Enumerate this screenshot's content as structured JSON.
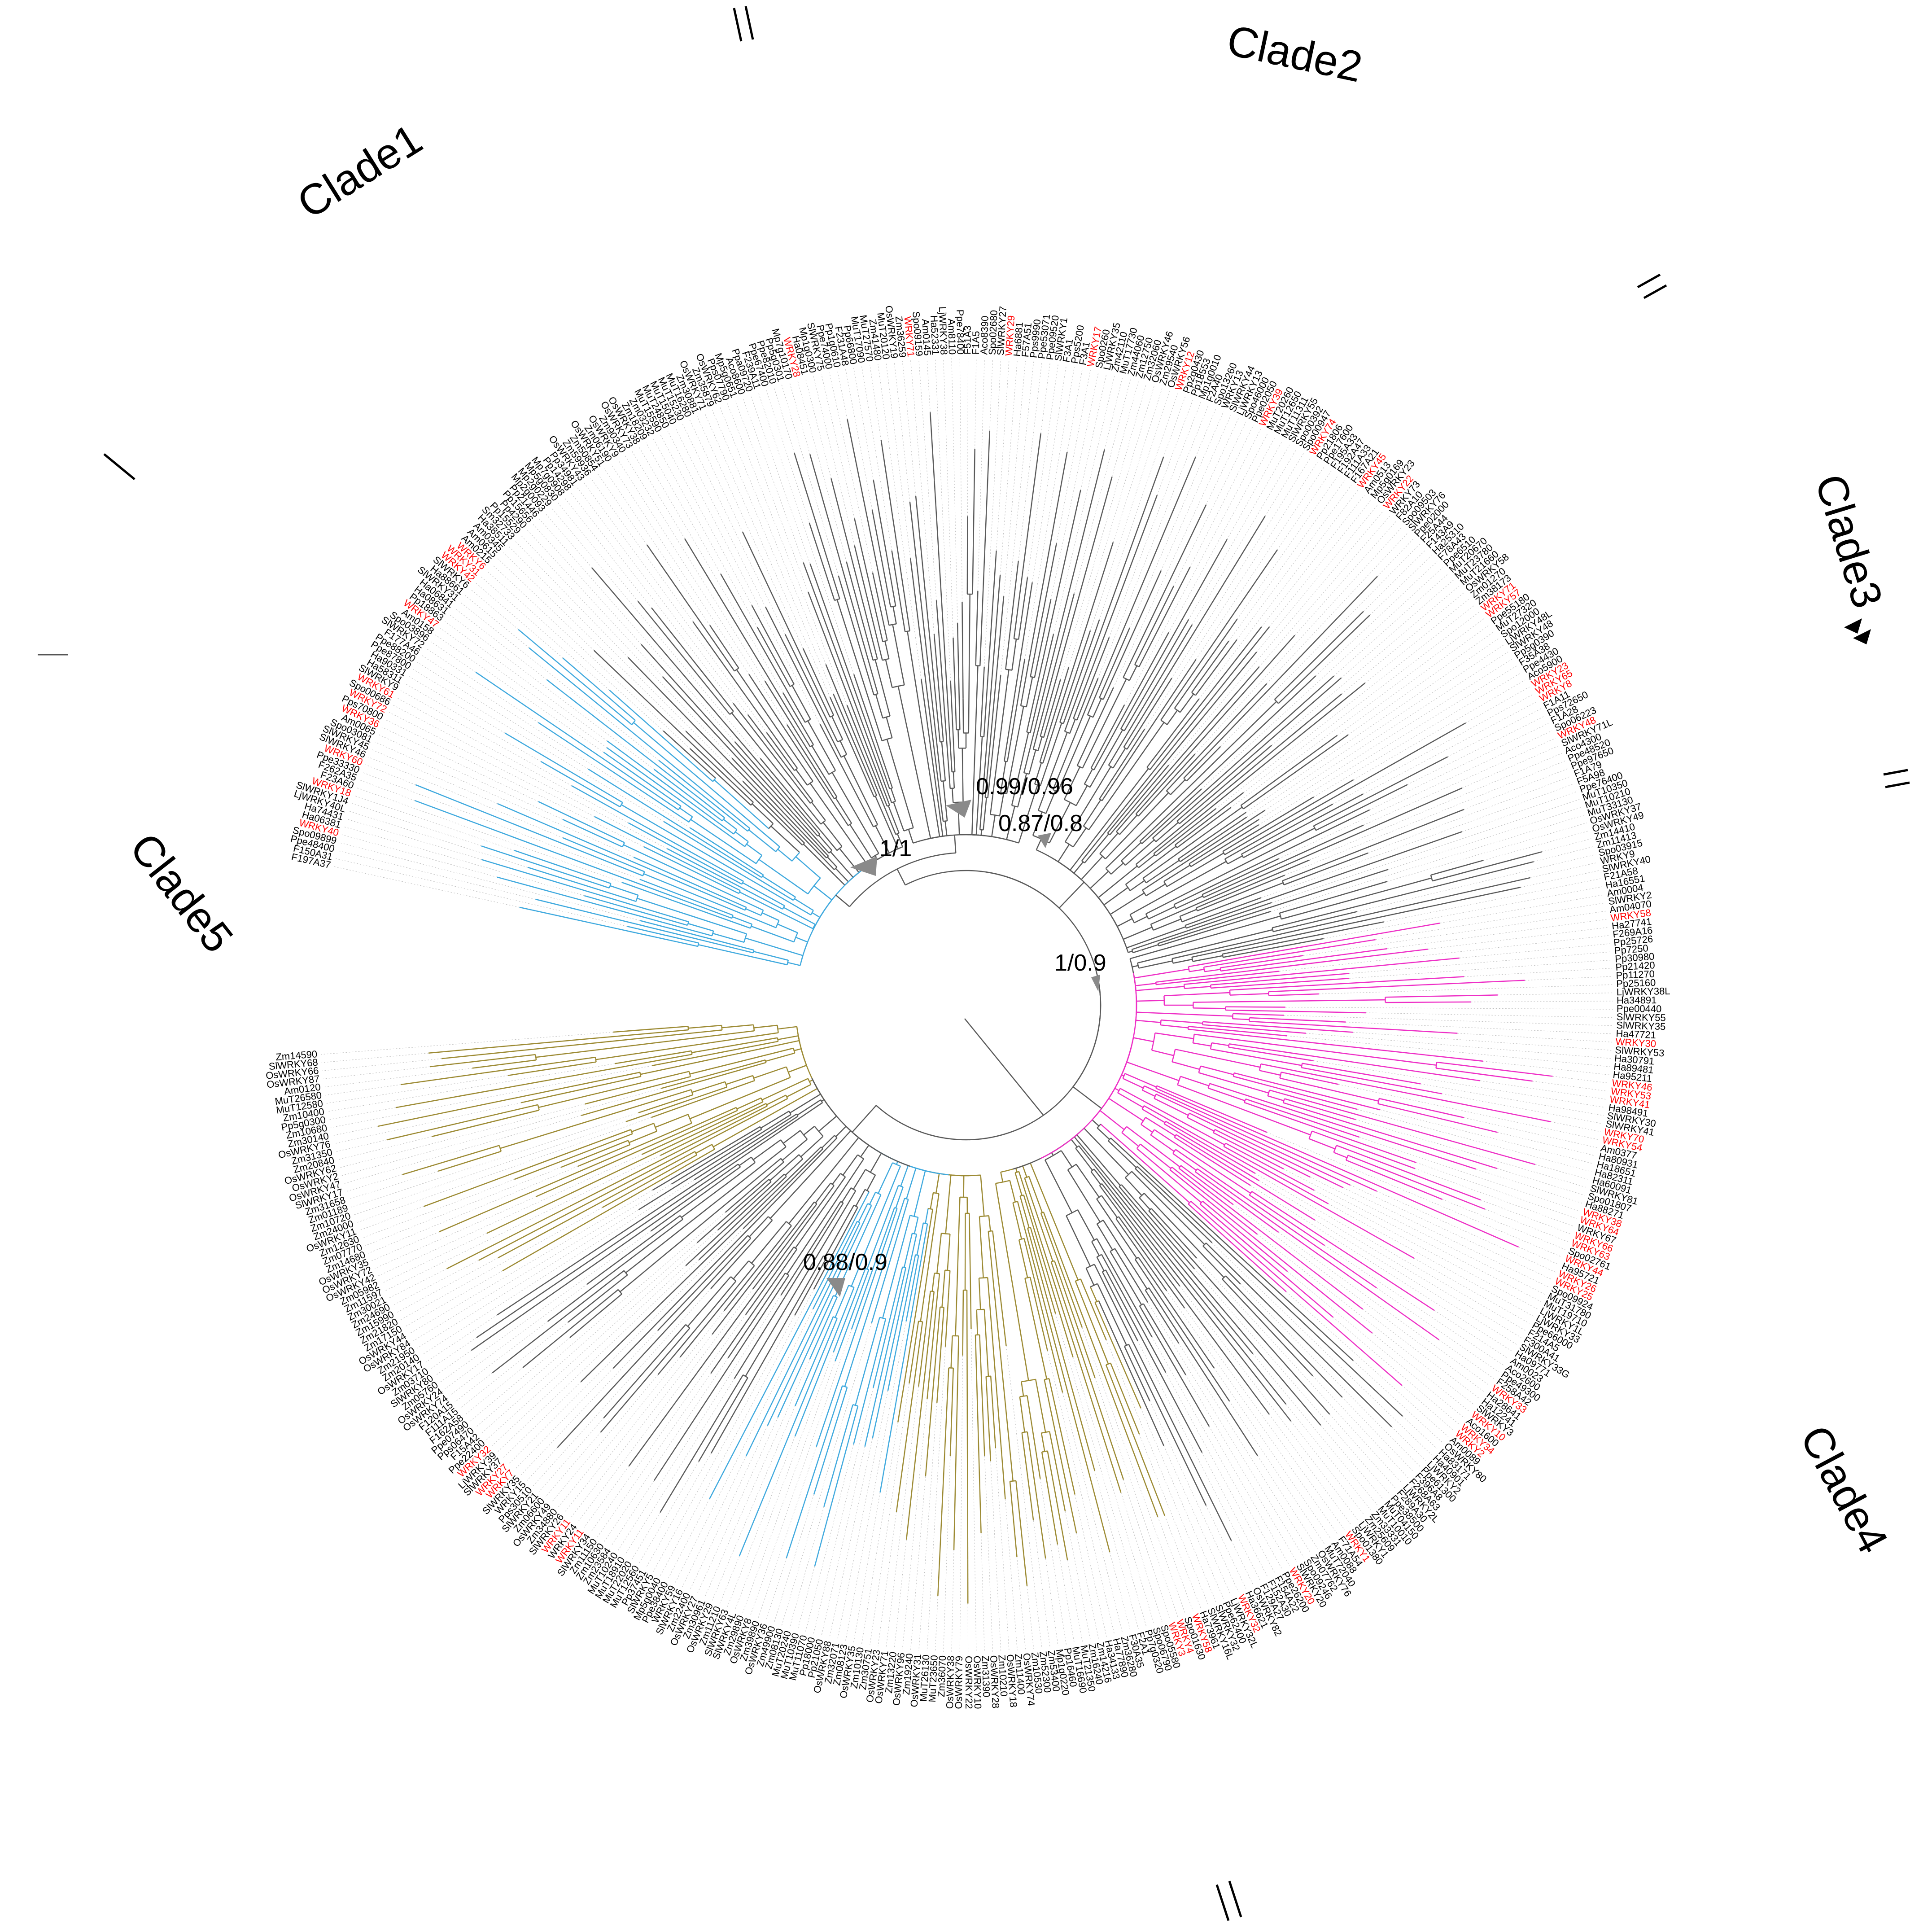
{
  "colors": {
    "branch_default": "#5a5a5a",
    "branch_blue": "#3fa9de",
    "branch_olive": "#9c8a33",
    "branch_magenta": "#ee2fc6",
    "leaf_black": "#000000",
    "leaf_red": "#ff0000",
    "dotted_guide": "#bdbdbd",
    "node_marker": "#8a8a8a"
  },
  "clades": [
    {
      "label": "Clade1"
    },
    {
      "label": "Clade2"
    },
    {
      "label": "Clade3"
    },
    {
      "label": "Clade4"
    },
    {
      "label": "Clade5"
    }
  ],
  "support_values": [
    {
      "label": "1/1"
    },
    {
      "label": "0.99/0.96"
    },
    {
      "label": "0.87/0.8"
    },
    {
      "label": "1/0.9"
    },
    {
      "label": "0.88/0.9"
    }
  ],
  "leaves_red_sample": [
    "WRKY49",
    "WRKY28",
    "WRKY32",
    "WRKY45",
    "WRKY69",
    "WRKY44",
    "WRKY26",
    "WRKY25",
    "WRKY35",
    "WRKY54",
    "WRKY70",
    "WRKY55",
    "WRKY53",
    "WRKY46",
    "WRKY41",
    "WRKY30",
    "WRKY38",
    "WRKY62",
    "WRKY64",
    "WRKY66",
    "WRKY63",
    "WRKY33",
    "WRKY10",
    "WRKY34",
    "WRKY2",
    "WRKY1",
    "WRKY20",
    "WRKY32",
    "WRKY58",
    "WRKY4",
    "WRKY3",
    "WRKY18",
    "WRKY40",
    "WRKY60",
    "WRKY36",
    "WRKY72",
    "WRKY61",
    "WRKY47",
    "WRKY42",
    "WRKY31",
    "WRKY6",
    "WRKY11",
    "WRKY17",
    "WRKY7",
    "WRKY12",
    "WRKY57",
    "WRKY8",
    "WRKY71",
    "WRKY39",
    "WRKY29",
    "WRKY22",
    "WRKY27",
    "WRKY48",
    "WRKY23",
    "WRKY65",
    "WRKY74"
  ],
  "leaves": [
    "F197A37",
    "F150A31",
    "Ppe48400",
    "Spo09899",
    "WRKY40",
    "Ha06381",
    "Ha74431",
    "LjWRKY40L",
    "SlWRKY1J4",
    "WRKY18",
    "F23A60",
    "F262A35",
    "Ppe33330",
    "WRKY60",
    "SlWRKY46",
    "SlWRKY45",
    "Spo03081",
    "Am0065",
    "WRKY36",
    "Pps70800",
    "WRKY72",
    "Spo00686",
    "WRKY61",
    "SlWRKY9",
    "Ha58311",
    "Ha90331",
    "Ppe87800",
    "Ppe88200",
    "F177A46",
    "SlWRKY72",
    "Spo03896",
    "Am0158",
    "WRKY47",
    "Pp18863",
    "Ha08631",
    "Ha06841",
    "SlWRKY31",
    "Ha88661",
    "SlWRKY6",
    "WRKY42",
    "WRKY31",
    "WRKY6",
    "Am0215",
    "Am0615",
    "Am0345",
    "Ha38511",
    "Sm32733",
    "Pp15529",
    "Pp4290",
    "Pp15656",
    "Pp21446",
    "Mp2g0093",
    "Mp2g0229",
    "Mp5g0830",
    "Mp7g0908",
    "Pp14298",
    "Pp34981",
    "OsWRKY43",
    "Zm59936",
    "Zm50854",
    "OsWRKY51",
    "Zm06190",
    "OsWRKY9",
    "Zm90340",
    "OsWRKY73",
    "OsWRKY38",
    "Zm18209",
    "Zm03232",
    "MuT15590",
    "MuT24850",
    "MuT15040",
    "MuT15230",
    "MuT16280",
    "Zm30881",
    "OsWRKY71",
    "Zm35879",
    "OsWRKY62",
    "Pps07790",
    "Mp5g0651",
    "Aco8600",
    "Ppa09720",
    "F239A11",
    "Ppe67400",
    "Ppe82010",
    "Pp5g0301",
    "Mp7g10170",
    "WRKY28",
    "Ha08451",
    "Mp1g0300",
    "SlWRKY75",
    "Ppe74000",
    "Pp1g0610",
    "F231A48",
    "Pp66800",
    "MuT17090",
    "MuT27570",
    "Zm41480",
    "MuT20120",
    "OsWRKY19",
    "Zm36259",
    "WRKY71",
    "Spo09159",
    "Am0145",
    "Ha52331",
    "LjWRKY38",
    "Am8110",
    "Ppe78400",
    "F51A3",
    "F1A5",
    "Aco8390",
    "Spo02680",
    "SlWRKY27",
    "WRKY29",
    "Ha6881",
    "F57A51",
    "Pps9990",
    "Ppe53071",
    "Ppe09520",
    "SlWRKY1",
    "F3A1",
    "Pps5200",
    "F3A1",
    "WRKY17",
    "Spo0260",
    "LjWRKY35",
    "Zm42110",
    "MuT17730",
    "Zm44060",
    "Zm12750",
    "Zm32060",
    "OsWRKY46",
    "Zm29540",
    "OsWRKY56",
    "WRKY12",
    "Pp2g0430",
    "Pp18553",
    "Mp1g0010",
    "F2A40",
    "Spo13260",
    "WRKY13",
    "SlWRKY44",
    "LjWRKY13",
    "Spo46000",
    "Ppe02050",
    "WRKY39",
    "MuT20260",
    "MuT12650",
    "MuT11311",
    "SlWRKY55",
    "Spo00392",
    "Spo00947",
    "WRKY74",
    "Pp21806",
    "Ppe17600",
    "F195A33",
    "F192A47",
    "F111A33",
    "F167A21",
    "WRKY45",
    "Am0513",
    "Mp5g0169",
    "OsWRKY23",
    "WRKY22",
    "WRKY73",
    "F82A10",
    "Spo09503",
    "SlWRKY76",
    "Ppe02000",
    "F25A44",
    "F143A9",
    "Ha25310",
    "F78A43",
    "Ppe6510",
    "MuT20670",
    "MuT23780",
    "MuT21660",
    "OsWRKY58",
    "Zm01270",
    "Zm38173",
    "WRKY71",
    "WRKY57",
    "Ppe55180",
    "MuT27320",
    "Spo12000",
    "LjWRKY48L",
    "SlWRKY48",
    "Pp5g0390",
    "F35A38",
    "Ppe4430",
    "Aco5900",
    "WRKY23",
    "WRKY65",
    "WRKY8",
    "F1A11",
    "Pps72650",
    "F1A28",
    "Spo06223",
    "WRKY48",
    "SlWRKY71L",
    "Aco4300",
    "Ppe48520",
    "Ppe97650",
    "F1A79",
    "F5A98",
    "Ppe76400",
    "MuT10350",
    "MuT10210",
    "MuT33130",
    "OsWRKY37",
    "OsWRKY49",
    "Zm14410",
    "Zm11413",
    "Spo03915",
    "WRKY9",
    "SlWRKY40",
    "F21A58",
    "Ha16551",
    "Am0004",
    "SlWRKY2",
    "Am04070",
    "WRKY58",
    "Ha27741",
    "F269A16",
    "Pp25726",
    "Pp7250",
    "Pp30980",
    "Pp21420",
    "Pp11270",
    "Pp25160",
    "LjWRKY38L",
    "Ha34891",
    "Ppe00440",
    "SlWRKY55",
    "SlWRKY35",
    "Ha47721",
    "WRKY30",
    "SlWRKY53",
    "Ha30791",
    "Ha89481",
    "Ha95211",
    "WRKY46",
    "WRKY53",
    "WRKY41",
    "Ha98491",
    "SlWRKY30",
    "SlWRKY41",
    "WRKY70",
    "WRKY54",
    "Am0377",
    "Ha80931",
    "Ha18651",
    "Ha82311",
    "Ha60091",
    "SlWRKY81",
    "Spo01807",
    "Ha88271",
    "WRKY38",
    "WRKY64",
    "WRKY67",
    "WRKY66",
    "WRKY63",
    "Spo02761",
    "WRKY44",
    "Ha95721",
    "WRKY26",
    "WRKY25",
    "Spo09924",
    "MuT31780",
    "MuT19710",
    "LjWRKY1L",
    "LjWRKY33",
    "Ppe66000",
    "F214A5",
    "F300A41",
    "SlWRKY33G",
    "Ha09771",
    "Am0023",
    "Aco2600",
    "Ppe49300",
    "F258A42",
    "WRKY33",
    "Ha28641",
    "Ha12241",
    "SlWRKY3",
    "WRKY10",
    "Aco1600",
    "WRKY34",
    "WRKY2",
    "Am0089",
    "OsWRKY80",
    "Ha83171",
    "Ha40901",
    "LjWRKY2",
    "Ppe61300",
    "F396A8",
    "F268A63",
    "LjWRKY2L",
    "F289A30",
    "Ppe38500",
    "MuT04150",
    "MuT10010",
    "Zm33331",
    "Zm25609",
    "LjWRKY1",
    "Spo01380",
    "WRKY1",
    "F71A54",
    "Am0088",
    "MuT72040",
    "OsWRKY76",
    "Zm07762",
    "Spo09246",
    "SlWRKY20",
    "WRKY20",
    "Ppe26200",
    "F154A22",
    "F152A30",
    "F129A27",
    "OsWRKY82",
    "Ha36621",
    "WRKY32",
    "LjWRKY32L",
    "Ppe62400",
    "SlWRKY32",
    "SlWRKY16L",
    "Ha73961",
    "WRKY58",
    "Spo01630",
    "WRKY4",
    "WRKY3",
    "Spo05580",
    "Spo06790",
    "Pp7g0320",
    "F2A1",
    "F30A35",
    "Zm36280",
    "Ha77890",
    "Ha34133",
    "Zm14216",
    "Zm16240",
    "MuT21350",
    "MuT16690",
    "Pp16460",
    "Mp1g0220",
    "Zm53400",
    "Zm52300",
    "Zm10530",
    "OsWRKY74",
    "Zm11400",
    "OsWRKY18",
    "Zm10210",
    "OsWRKY28",
    "Zm31390",
    "OsWRKY10",
    "OsWRKY22",
    "OsWRKY79",
    "OsWRKY38",
    "Zm36070",
    "MuT23650",
    "MuT26130",
    "OsWRKY31",
    "Zm19240",
    "OsWRKY96",
    "Zm13220",
    "OsWRKY71",
    "OsWRKY23",
    "Zm30751",
    "Zm10130",
    "OsWRKY35",
    "Zm08123",
    "Zm32071",
    "OsWRKY88",
    "Pp21050",
    "Pp18000",
    "MuT11070",
    "MuT10390",
    "MuT20240",
    "Zm08130",
    "Zm49900",
    "OsWRKY36",
    "Zm39890",
    "OsWRKY8",
    "Zm29890",
    "SlWRKY4L",
    "SlWRKY63",
    "Zm11210",
    "OsWRKY29",
    "Zm30961",
    "OsWRKY27",
    "Zm22400",
    "SlWRKY16",
    "WRKY59",
    "Ppe38400",
    "Mp5g0040",
    "SlWRKY5",
    "Pp37451",
    "MuT12560",
    "MuT22020",
    "MuT18910",
    "MuT10240",
    "Zm23584",
    "Zm10630",
    "Zm11150",
    "SlWRKY34",
    "WRKY11",
    "WRKY24",
    "WRKY11",
    "SlWRKY26",
    "Zm34880",
    "OsWRKY49",
    "Zm06600",
    "SlWRKY21",
    "Pps30510",
    "WRKY15",
    "SlWRKY35",
    "WRKY7",
    "WRKY27",
    "SlWRKY37",
    "LjWRKY39",
    "WRKY32",
    "Ppe22400",
    "F15A42",
    "Pps06470",
    "Ppe07490",
    "F162A58",
    "F111A15",
    "F120A15",
    "OsWRKY74",
    "OsWRKY24",
    "Zm05760",
    "SlWRKY80",
    "Zm03710",
    "OsWRKY17",
    "Zm20140",
    "Zm21950",
    "OsWRKY84",
    "OsWRKY44",
    "Zm17150",
    "Zm21820",
    "Zm15990",
    "Zm24690",
    "Zm30021",
    "Zm11597",
    "Zm05982",
    "OsWRKY42",
    "OsWRKY72",
    "OsWRKY35",
    "Zm14680",
    "Zm07770",
    "Zm12630",
    "OsWRKY11",
    "Zm24000",
    "Zm10720",
    "Zm01189",
    "Zm31658",
    "SlWRKY17",
    "OsWRKY47",
    "OsWRKY2",
    "OsWRKY62",
    "Zm20840",
    "Zm31350",
    "OsWRKY76",
    "Zm30140",
    "Zm10680",
    "Pp5g0300",
    "Zm10400",
    "MuT12580",
    "MuT26580",
    "Am0120",
    "OsWRKY87",
    "OsWRKY66",
    "SlWRKY68",
    "Zm14590"
  ]
}
